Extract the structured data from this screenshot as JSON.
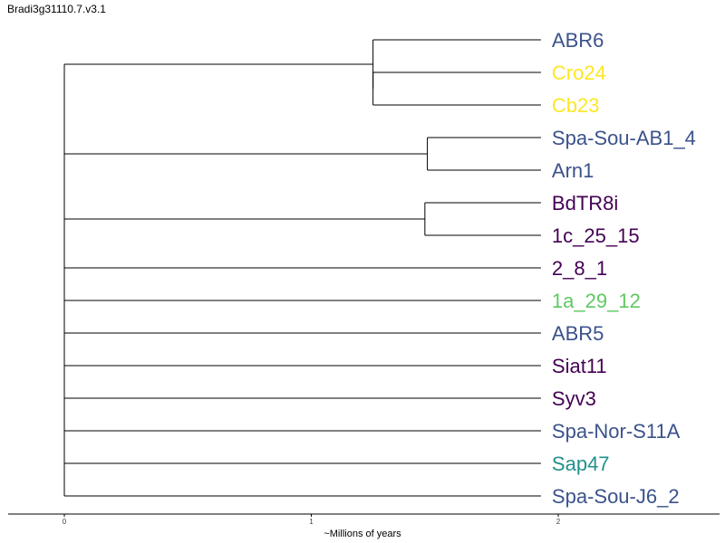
{
  "chart_data": {
    "type": "dendrogram",
    "title": "Bradi3g31110.7.v3.1",
    "xlabel": "~Millions of years",
    "xlim": [
      0,
      2.65
    ],
    "x_ticks": [
      0,
      1,
      2
    ],
    "leaves": [
      {
        "label": "ABR6",
        "color": "#3b528b"
      },
      {
        "label": "Cro24",
        "color": "#fde725"
      },
      {
        "label": "Cb23",
        "color": "#fde725"
      },
      {
        "label": "Spa-Sou-AB1_4",
        "color": "#3b528b"
      },
      {
        "label": "Arn1",
        "color": "#3b528b"
      },
      {
        "label": "BdTR8i",
        "color": "#440154"
      },
      {
        "label": "1c_25_15",
        "color": "#440154"
      },
      {
        "label": "2_8_1",
        "color": "#440154"
      },
      {
        "label": "1a_29_12",
        "color": "#5ec962"
      },
      {
        "label": "ABR5",
        "color": "#3b528b"
      },
      {
        "label": "Siat11",
        "color": "#440154"
      },
      {
        "label": "Syv3",
        "color": "#440154"
      },
      {
        "label": "Spa-Nor-S11A",
        "color": "#3b528b"
      },
      {
        "label": "Sap47",
        "color": "#21918c"
      },
      {
        "label": "Spa-Sou-J6_2",
        "color": "#3b528b"
      }
    ],
    "leaf_x": 1.93,
    "root_x": 0,
    "clusters": [
      {
        "members": [
          0,
          1,
          2
        ],
        "join_x": 1.25,
        "sub": [
          {
            "members": [
              1,
              2
            ],
            "join_x": 1.25
          }
        ]
      },
      {
        "members": [
          3,
          4
        ],
        "join_x": 1.47
      },
      {
        "members": [
          5,
          6
        ],
        "join_x": 1.46
      }
    ]
  }
}
